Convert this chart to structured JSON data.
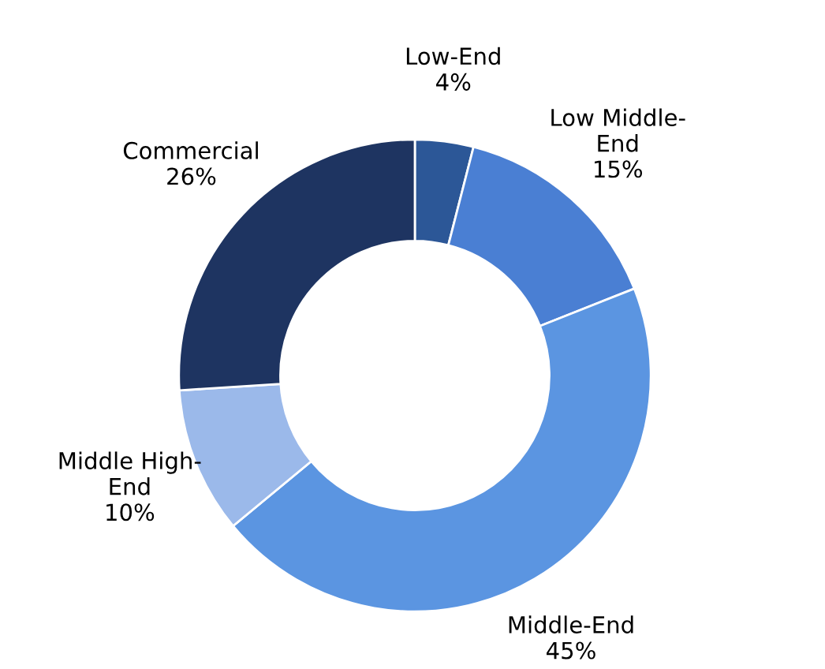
{
  "chart_data": {
    "type": "donut",
    "categories": [
      "Low-End",
      "Low Middle-\nEnd",
      "Middle-End",
      "Middle High-\nEnd",
      "Commercial"
    ],
    "values": [
      4,
      15,
      45,
      10,
      26
    ],
    "value_labels": [
      "4%",
      "15%",
      "45%",
      "10%",
      "26%"
    ],
    "colors": [
      "#2c5797",
      "#4a7fd3",
      "#5b95e1",
      "#9bb9ea",
      "#1e3461"
    ],
    "legend": false
  }
}
